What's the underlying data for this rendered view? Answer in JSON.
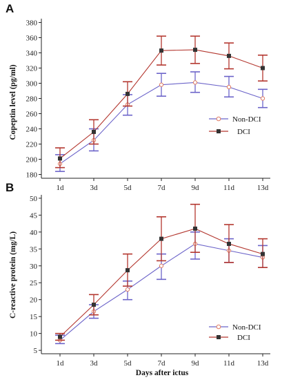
{
  "colors": {
    "nondci": "#6b63c9",
    "dci": "#b3362e",
    "axis": "#222222",
    "marker": "#333333"
  },
  "chart_data": [
    {
      "type": "line",
      "panel_label": "A",
      "categories": [
        "1d",
        "3d",
        "5d",
        "7d",
        "9d",
        "11d",
        "13d"
      ],
      "ylabel": "Copeptin level (pg/ml)",
      "xlabel": "",
      "ylim": [
        175,
        385
      ],
      "yticks": [
        180,
        200,
        220,
        240,
        260,
        280,
        300,
        320,
        340,
        360,
        380
      ],
      "legend": "top-right",
      "series": [
        {
          "name": "Non-DCI",
          "values": [
            194,
            225,
            272,
            298,
            301,
            295,
            280
          ],
          "err_low": [
            184,
            211,
            258,
            283,
            288,
            282,
            268
          ],
          "err_high": [
            206,
            240,
            285,
            313,
            315,
            309,
            292
          ]
        },
        {
          "name": "DCI",
          "values": [
            201,
            236,
            286,
            343,
            344,
            336,
            320
          ],
          "err_low": [
            189,
            220,
            270,
            324,
            326,
            319,
            303
          ],
          "err_high": [
            215,
            252,
            302,
            362,
            362,
            353,
            337
          ]
        }
      ]
    },
    {
      "type": "line",
      "panel_label": "B",
      "categories": [
        "1d",
        "3d",
        "5d",
        "7d",
        "9d",
        "11d",
        "13d"
      ],
      "ylabel": "C-reactive protein (mg/L)",
      "xlabel": "Days after ictus",
      "ylim": [
        4,
        51
      ],
      "yticks": [
        5,
        10,
        15,
        20,
        25,
        30,
        35,
        40,
        45,
        50
      ],
      "legend": "bottom-right",
      "series": [
        {
          "name": "Non-DCI",
          "values": [
            8,
            16.5,
            23,
            30,
            36.5,
            34.5,
            32.5
          ],
          "err_low": [
            7,
            14.5,
            20,
            26,
            32,
            31,
            29.5
          ],
          "err_high": [
            9.5,
            18.5,
            25.5,
            33.5,
            40,
            38,
            36
          ]
        },
        {
          "name": "DCI",
          "values": [
            9,
            18.5,
            28.7,
            38,
            41,
            36.5,
            33.5
          ],
          "err_low": [
            8,
            15.5,
            24,
            31.5,
            34,
            31,
            29.5
          ],
          "err_high": [
            10,
            21.5,
            33.5,
            44.5,
            48.2,
            42.2,
            38
          ]
        }
      ]
    }
  ]
}
